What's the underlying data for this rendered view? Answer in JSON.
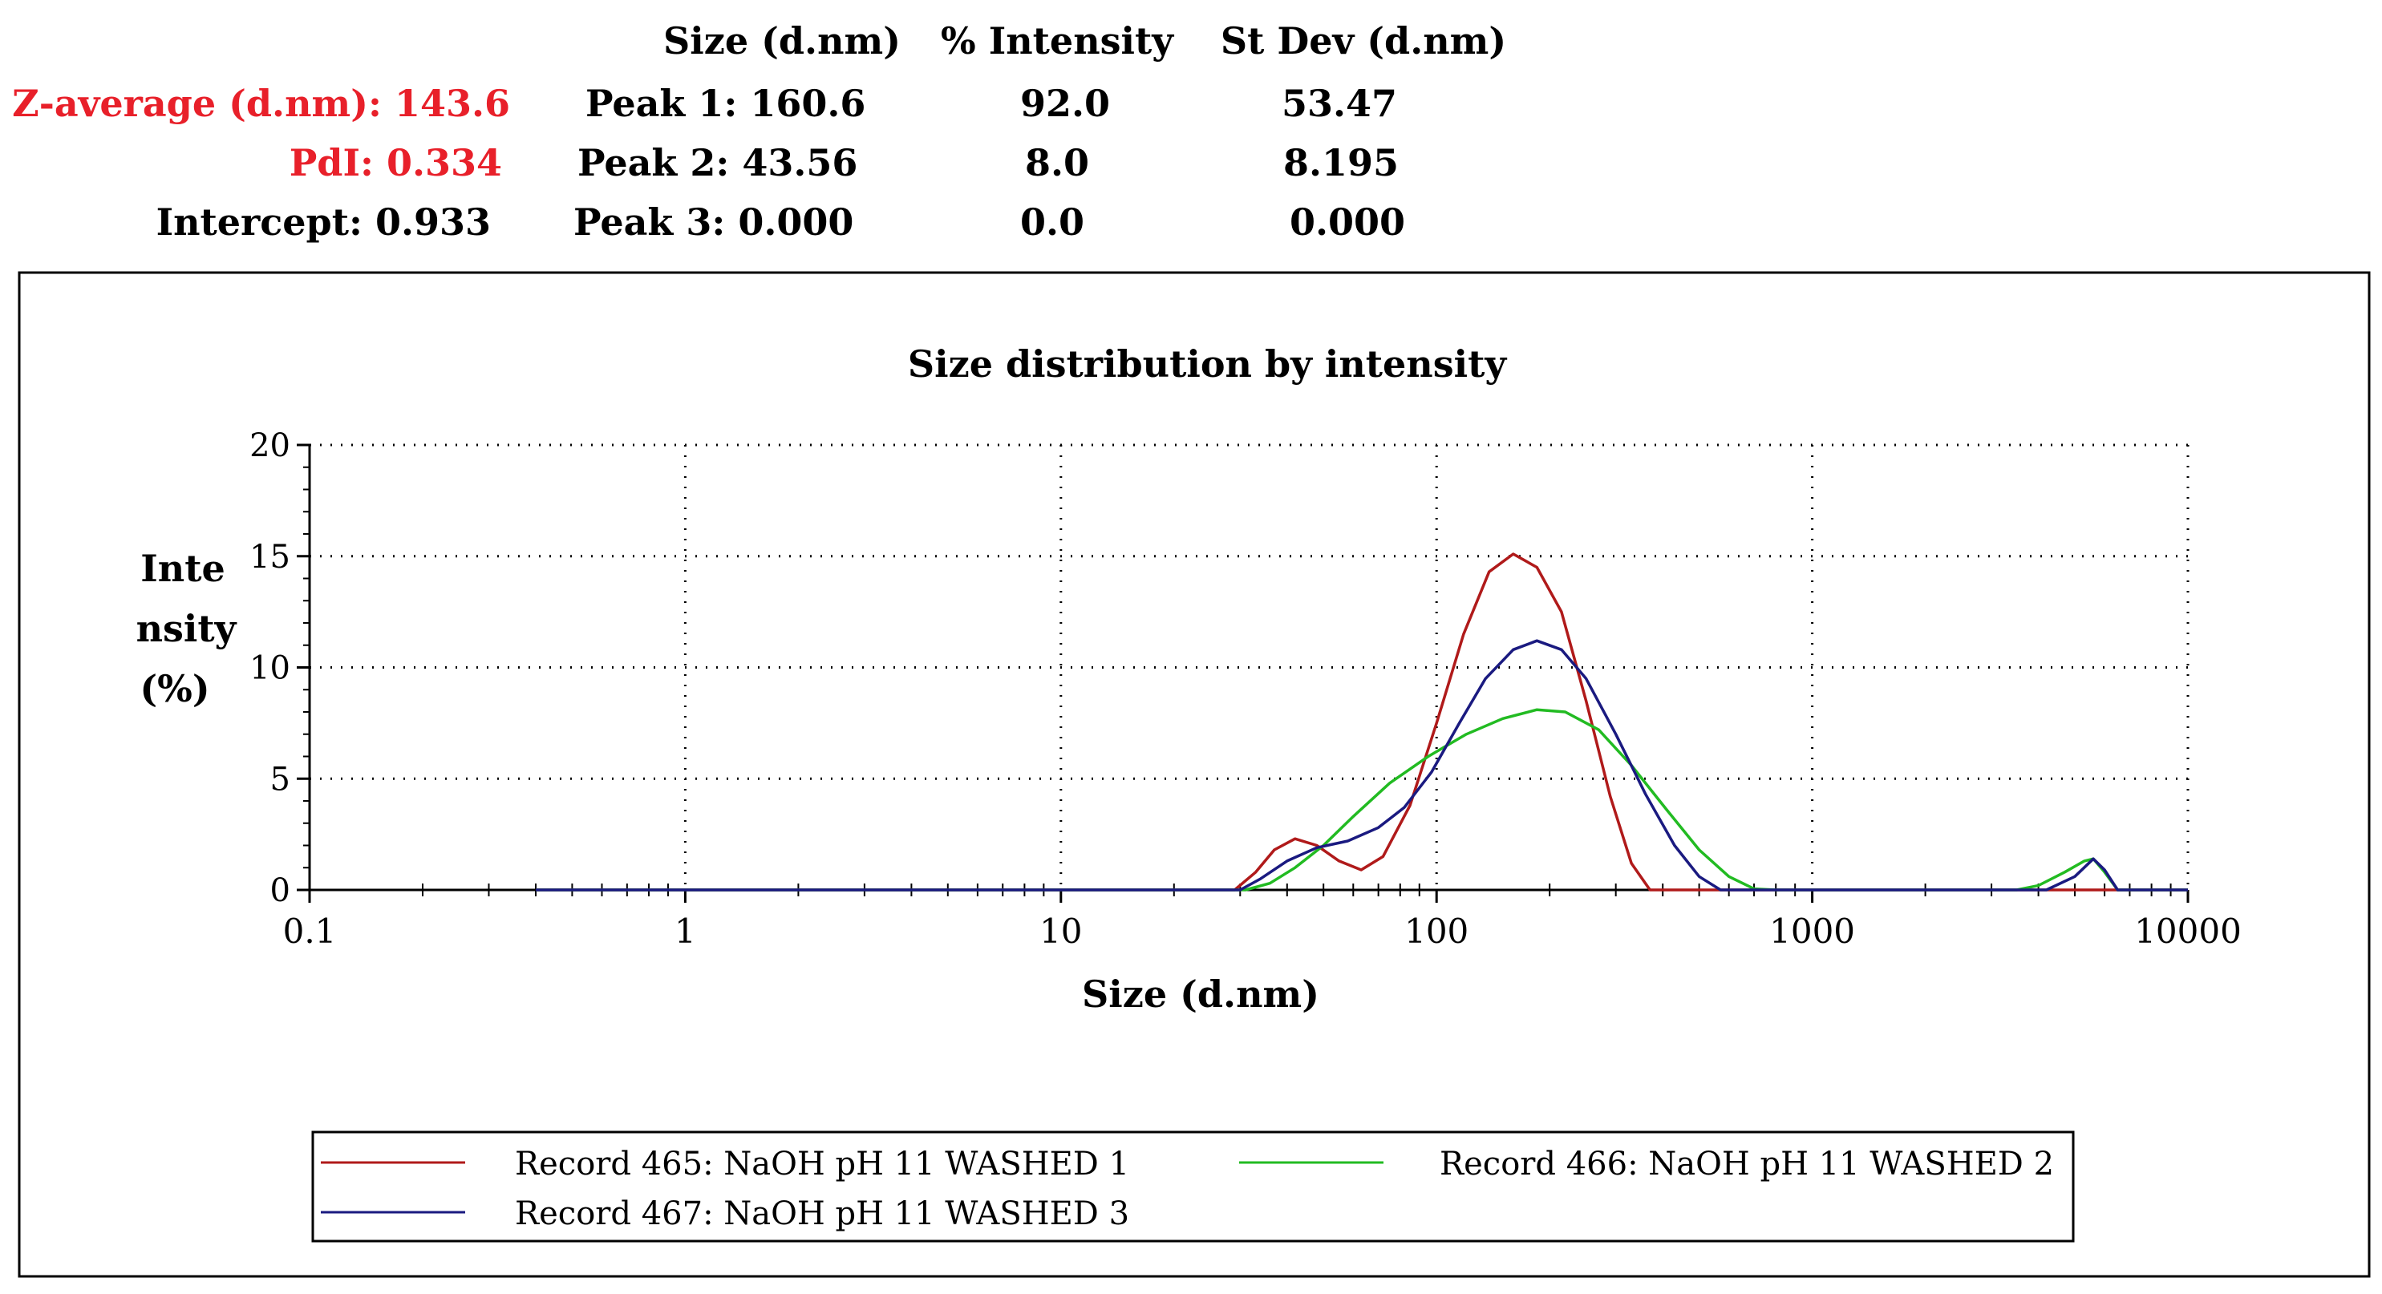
{
  "summary": {
    "headers": {
      "size": "Size (d.nm)",
      "intensity": "% Intensity",
      "stdev": "St Dev (d.nm)"
    },
    "left": {
      "z_average": "Z-average (d.nm): 143.6",
      "pdi": "PdI: 0.334",
      "intercept": "Intercept: 0.933"
    },
    "peaks": [
      {
        "label": "Peak 1: 160.6",
        "intensity": "92.0",
        "stdev": "53.47"
      },
      {
        "label": "Peak 2: 43.56",
        "intensity": "8.0",
        "stdev": "8.195"
      },
      {
        "label": "Peak 3: 0.000",
        "intensity": "0.0",
        "stdev": "0.000"
      }
    ],
    "colors": {
      "highlight": "#e8202a"
    }
  },
  "chart_data": {
    "type": "line",
    "title": "Size distribution by intensity",
    "xlabel": "Size (d.nm)",
    "ylabel_lines": [
      "Inte",
      "nsity",
      "(%)"
    ],
    "x_scale": "log",
    "xlim": [
      0.1,
      10000
    ],
    "ylim": [
      0,
      20
    ],
    "x_ticks": [
      0.1,
      1,
      10,
      100,
      1000,
      10000
    ],
    "x_tick_labels": [
      "0.1",
      "1",
      "10",
      "100",
      "1000",
      "10000"
    ],
    "y_ticks": [
      0,
      5,
      10,
      15,
      20
    ],
    "y_tick_labels": [
      "0",
      "5",
      "10",
      "15",
      "20"
    ],
    "grid": true,
    "legend_position": "bottom",
    "series": [
      {
        "name": "Record 465: NaOH pH 11 WASHED 1",
        "color": "#b01a1a",
        "points": [
          [
            0.4,
            0
          ],
          [
            1,
            0
          ],
          [
            10,
            0
          ],
          [
            29,
            0
          ],
          [
            33,
            0.8
          ],
          [
            37,
            1.8
          ],
          [
            42,
            2.3
          ],
          [
            48,
            2.0
          ],
          [
            55,
            1.3
          ],
          [
            63,
            0.9
          ],
          [
            72,
            1.5
          ],
          [
            85,
            3.8
          ],
          [
            100,
            7.5
          ],
          [
            118,
            11.5
          ],
          [
            138,
            14.3
          ],
          [
            160,
            15.1
          ],
          [
            185,
            14.5
          ],
          [
            215,
            12.5
          ],
          [
            250,
            8.5
          ],
          [
            290,
            4.2
          ],
          [
            330,
            1.2
          ],
          [
            370,
            0
          ],
          [
            500,
            0
          ],
          [
            1000,
            0
          ],
          [
            10000,
            0
          ]
        ]
      },
      {
        "name": "Record 466: NaOH pH 11 WASHED 2",
        "color": "#22bb22",
        "points": [
          [
            0.4,
            0
          ],
          [
            1,
            0
          ],
          [
            10,
            0
          ],
          [
            31,
            0
          ],
          [
            36,
            0.3
          ],
          [
            42,
            1.0
          ],
          [
            50,
            2.0
          ],
          [
            60,
            3.3
          ],
          [
            75,
            4.8
          ],
          [
            95,
            6.0
          ],
          [
            120,
            7.0
          ],
          [
            150,
            7.7
          ],
          [
            185,
            8.1
          ],
          [
            220,
            8.0
          ],
          [
            270,
            7.2
          ],
          [
            330,
            5.6
          ],
          [
            410,
            3.6
          ],
          [
            500,
            1.8
          ],
          [
            600,
            0.6
          ],
          [
            700,
            0.05
          ],
          [
            800,
            0
          ],
          [
            3500,
            0
          ],
          [
            4000,
            0.2
          ],
          [
            4700,
            0.8
          ],
          [
            5300,
            1.3
          ],
          [
            5600,
            1.4
          ],
          [
            6000,
            0.8
          ],
          [
            6500,
            0
          ],
          [
            10000,
            0
          ]
        ]
      },
      {
        "name": "Record 467: NaOH pH 11 WASHED 3",
        "color": "#1a1a80",
        "points": [
          [
            0.4,
            0
          ],
          [
            1,
            0
          ],
          [
            10,
            0
          ],
          [
            30,
            0
          ],
          [
            34,
            0.5
          ],
          [
            40,
            1.3
          ],
          [
            48,
            1.9
          ],
          [
            58,
            2.2
          ],
          [
            70,
            2.8
          ],
          [
            82,
            3.7
          ],
          [
            97,
            5.3
          ],
          [
            115,
            7.5
          ],
          [
            135,
            9.5
          ],
          [
            160,
            10.8
          ],
          [
            185,
            11.2
          ],
          [
            215,
            10.8
          ],
          [
            250,
            9.5
          ],
          [
            300,
            7.0
          ],
          [
            360,
            4.3
          ],
          [
            430,
            2.0
          ],
          [
            500,
            0.6
          ],
          [
            570,
            0
          ],
          [
            1000,
            0
          ],
          [
            4200,
            0
          ],
          [
            5000,
            0.6
          ],
          [
            5600,
            1.4
          ],
          [
            6000,
            0.9
          ],
          [
            6500,
            0
          ],
          [
            10000,
            0
          ]
        ]
      }
    ]
  }
}
